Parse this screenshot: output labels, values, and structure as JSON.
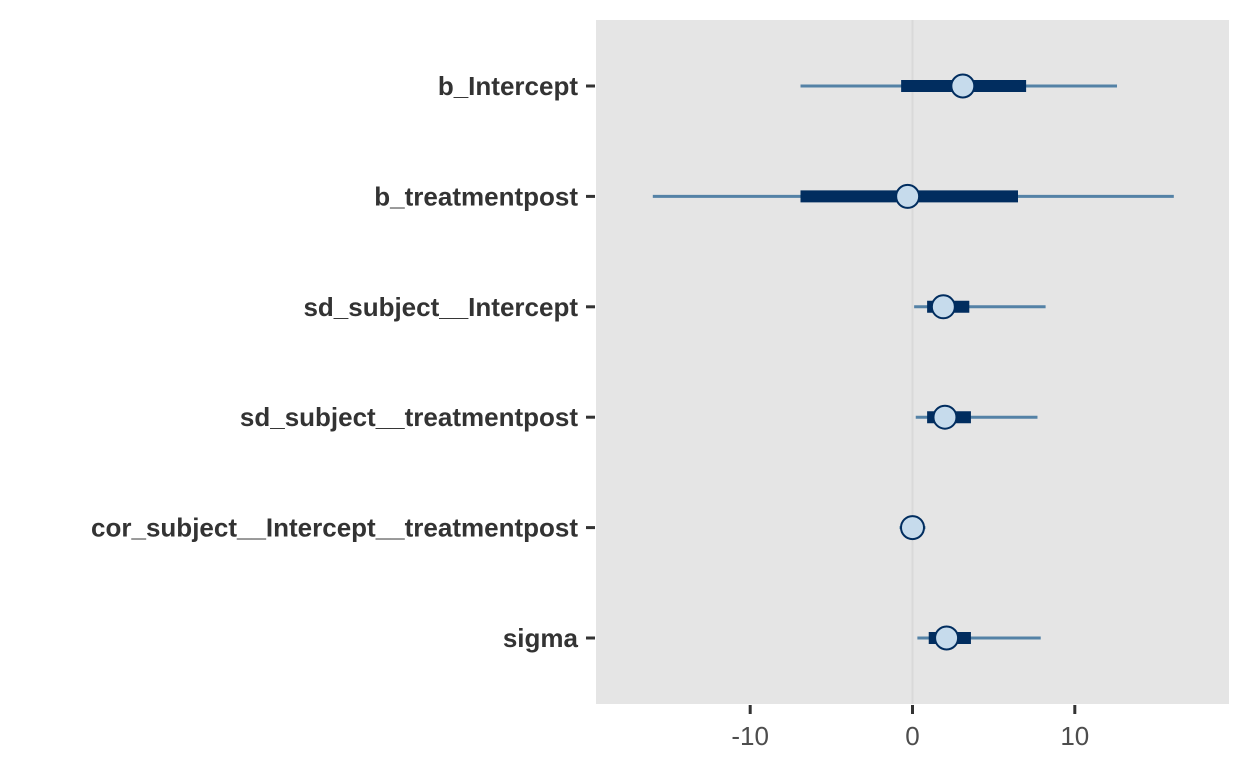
{
  "chart_data": {
    "type": "interval",
    "title": "",
    "xlabel": "",
    "ylabel": "",
    "xlim": [
      -19.5,
      19.5
    ],
    "x_ticks": [
      -10,
      0,
      10
    ],
    "x_tick_labels": [
      "-10",
      "0",
      "10"
    ],
    "vline_at": 0,
    "grid": false,
    "parameters": [
      {
        "name": "b_Intercept",
        "point": 3.1,
        "inner": [
          -0.7,
          7.0
        ],
        "outer": [
          -6.9,
          12.6
        ]
      },
      {
        "name": "b_treatmentpost",
        "point": -0.3,
        "inner": [
          -6.9,
          6.5
        ],
        "outer": [
          -16.0,
          16.1
        ]
      },
      {
        "name": "sd_subject__Intercept",
        "point": 1.9,
        "inner": [
          0.9,
          3.5
        ],
        "outer": [
          0.1,
          8.2
        ]
      },
      {
        "name": "sd_subject__treatmentpost",
        "point": 2.0,
        "inner": [
          0.9,
          3.6
        ],
        "outer": [
          0.2,
          7.7
        ]
      },
      {
        "name": "cor_subject__Intercept__treatmentpost",
        "point": 0.0,
        "inner": [
          -0.5,
          0.5
        ],
        "outer": [
          -0.8,
          0.8
        ]
      },
      {
        "name": "sigma",
        "point": 2.1,
        "inner": [
          1.0,
          3.6
        ],
        "outer": [
          0.3,
          7.9
        ]
      }
    ],
    "colors": {
      "panel": "#e5e5e5",
      "inner": "#012d5f",
      "outer": "#5482a6",
      "point_fill": "#c6dbec",
      "point_stroke": "#012d5f",
      "vline": "#d9d9d9",
      "axis_text_y": "#333333",
      "axis_text_x": "#4d4d4d"
    }
  }
}
